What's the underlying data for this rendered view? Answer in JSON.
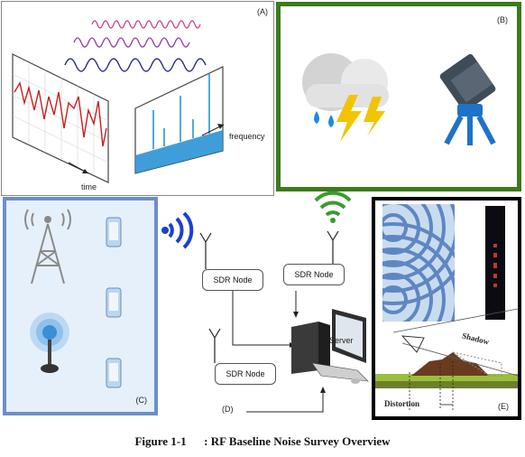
{
  "panels": {
    "a": {
      "label": "(A)",
      "axis_time": "time",
      "axis_frequency": "frequency"
    },
    "b": {
      "label": "(B)"
    },
    "c": {
      "label": "(C)"
    },
    "d": {
      "label": "(D)",
      "node1": "SDR Node",
      "node2": "SDR Node",
      "node3": "SDR Node",
      "server": "Server"
    },
    "e": {
      "label": "(E)",
      "shadow": "Shadow",
      "distortion": "Distortion"
    }
  },
  "caption": {
    "number": "Figure 1-1",
    "sep": ":",
    "title": "RF Baseline Noise Survey Overview"
  },
  "colors": {
    "panel_b_border": "#3d7a1c",
    "panel_c_border": "#6c8fc7",
    "panel_c_fill": "#e6f0fb",
    "panel_e_border": "#000000",
    "wifi_blue": "#1a3fd0",
    "wifi_green": "#3b9b2f"
  }
}
